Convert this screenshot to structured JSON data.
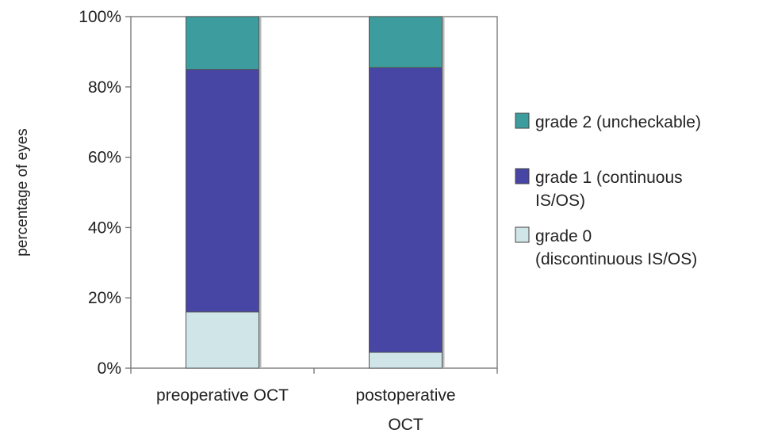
{
  "chart_data": {
    "type": "bar",
    "stacked": true,
    "categories": [
      "preoperative OCT",
      "postoperative OCT"
    ],
    "category_label_lines": [
      [
        "preoperative OCT"
      ],
      [
        "postoperative",
        "OCT"
      ]
    ],
    "series": [
      {
        "name": "grade 0 (discontinuous IS/OS)",
        "legend_lines": [
          "grade 0",
          "(discontinuous IS/OS)"
        ],
        "color": "#cfe5e8",
        "values": [
          16,
          4.5
        ]
      },
      {
        "name": "grade 1 (continuous IS/OS)",
        "legend_lines": [
          "grade 1 (continuous",
          "IS/OS)"
        ],
        "color": "#4746a4",
        "values": [
          69,
          81
        ]
      },
      {
        "name": "grade 2 (uncheckable)",
        "legend_lines": [
          "grade 2 (uncheckable)"
        ],
        "color": "#3d9d9e",
        "values": [
          15,
          14.5
        ]
      }
    ],
    "legend_order": [
      2,
      1,
      0
    ],
    "ylabel": "percentage of eyes",
    "xlabel": "",
    "ylim": [
      0,
      100
    ],
    "yticks": [
      0,
      20,
      40,
      60,
      80,
      100
    ],
    "ytick_labels": [
      "0%",
      "20%",
      "40%",
      "60%",
      "80%",
      "100%"
    ],
    "grid": false,
    "legend_position": "right"
  }
}
